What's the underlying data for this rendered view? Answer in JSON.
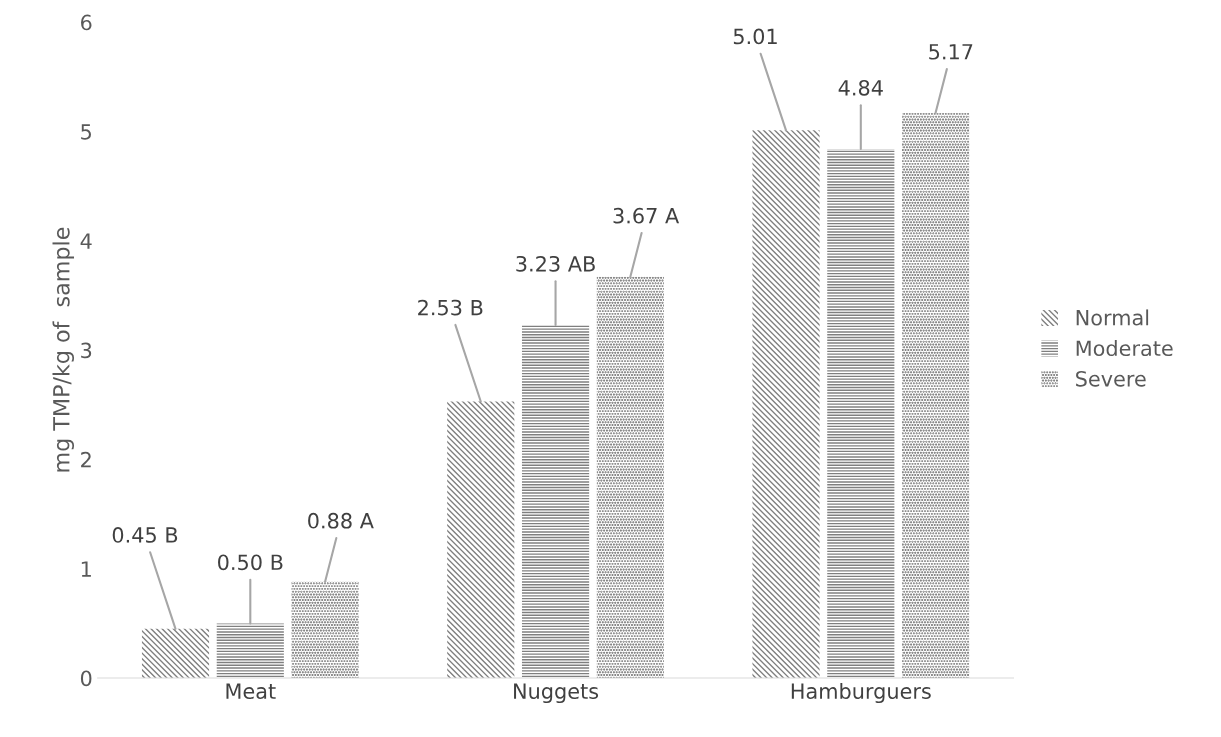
{
  "chart_data": {
    "type": "bar",
    "ylabel": "mg TMP/kg of  sample",
    "categories": [
      "Meat",
      "Nuggets",
      "Hamburguers"
    ],
    "series": [
      {
        "name": "Normal",
        "color": "#7f7f7f",
        "values": [
          0.45,
          2.53,
          5.01
        ],
        "value_labels": [
          "0.45 B",
          "2.53 B",
          "5.01"
        ]
      },
      {
        "name": "Moderate",
        "color": "#7f7f7f",
        "values": [
          0.5,
          3.23,
          4.84
        ],
        "value_labels": [
          "0.50 B",
          "3.23 AB",
          "4.84"
        ]
      },
      {
        "name": "Severe",
        "color": "#595959",
        "values": [
          0.88,
          3.67,
          5.17
        ],
        "value_labels": [
          "0.88 A",
          "3.67 A",
          "5.17"
        ]
      }
    ],
    "ylim": [
      0,
      6
    ],
    "yticks": [
      0,
      1,
      2,
      3,
      4,
      5,
      6
    ],
    "grid": false,
    "legend": "right"
  }
}
